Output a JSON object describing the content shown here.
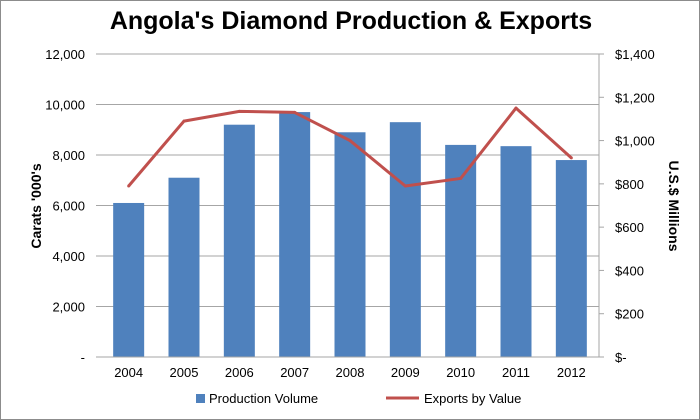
{
  "chart_data": {
    "type": "bar+line",
    "title": "Angola's Diamond Production & Exports",
    "categories": [
      "2004",
      "2005",
      "2006",
      "2007",
      "2008",
      "2009",
      "2010",
      "2011",
      "2012"
    ],
    "series": [
      {
        "name": "Production Volume",
        "type": "bar",
        "axis": "left",
        "color": "#4f81bd",
        "values": [
          6100,
          7100,
          9200,
          9700,
          8900,
          9300,
          8400,
          8350,
          7800
        ]
      },
      {
        "name": "Exports by Value",
        "type": "line",
        "axis": "right",
        "color": "#c0504d",
        "values": [
          790,
          1090,
          1135,
          1130,
          1000,
          790,
          825,
          1150,
          920
        ]
      }
    ],
    "ylabel": "Carats '000's",
    "y2label": "U.S.$ Millions",
    "ylim": [
      0,
      12000
    ],
    "y2lim": [
      0,
      1400
    ],
    "yticks": [
      "-",
      "2,000",
      "4,000",
      "6,000",
      "8,000",
      "10,000",
      "12,000"
    ],
    "y2ticks": [
      "$-",
      "$200",
      "$400",
      "$600",
      "$800",
      "$1,000",
      "$1,200",
      "$1,400"
    ],
    "grid": true,
    "legend": "bottom"
  }
}
